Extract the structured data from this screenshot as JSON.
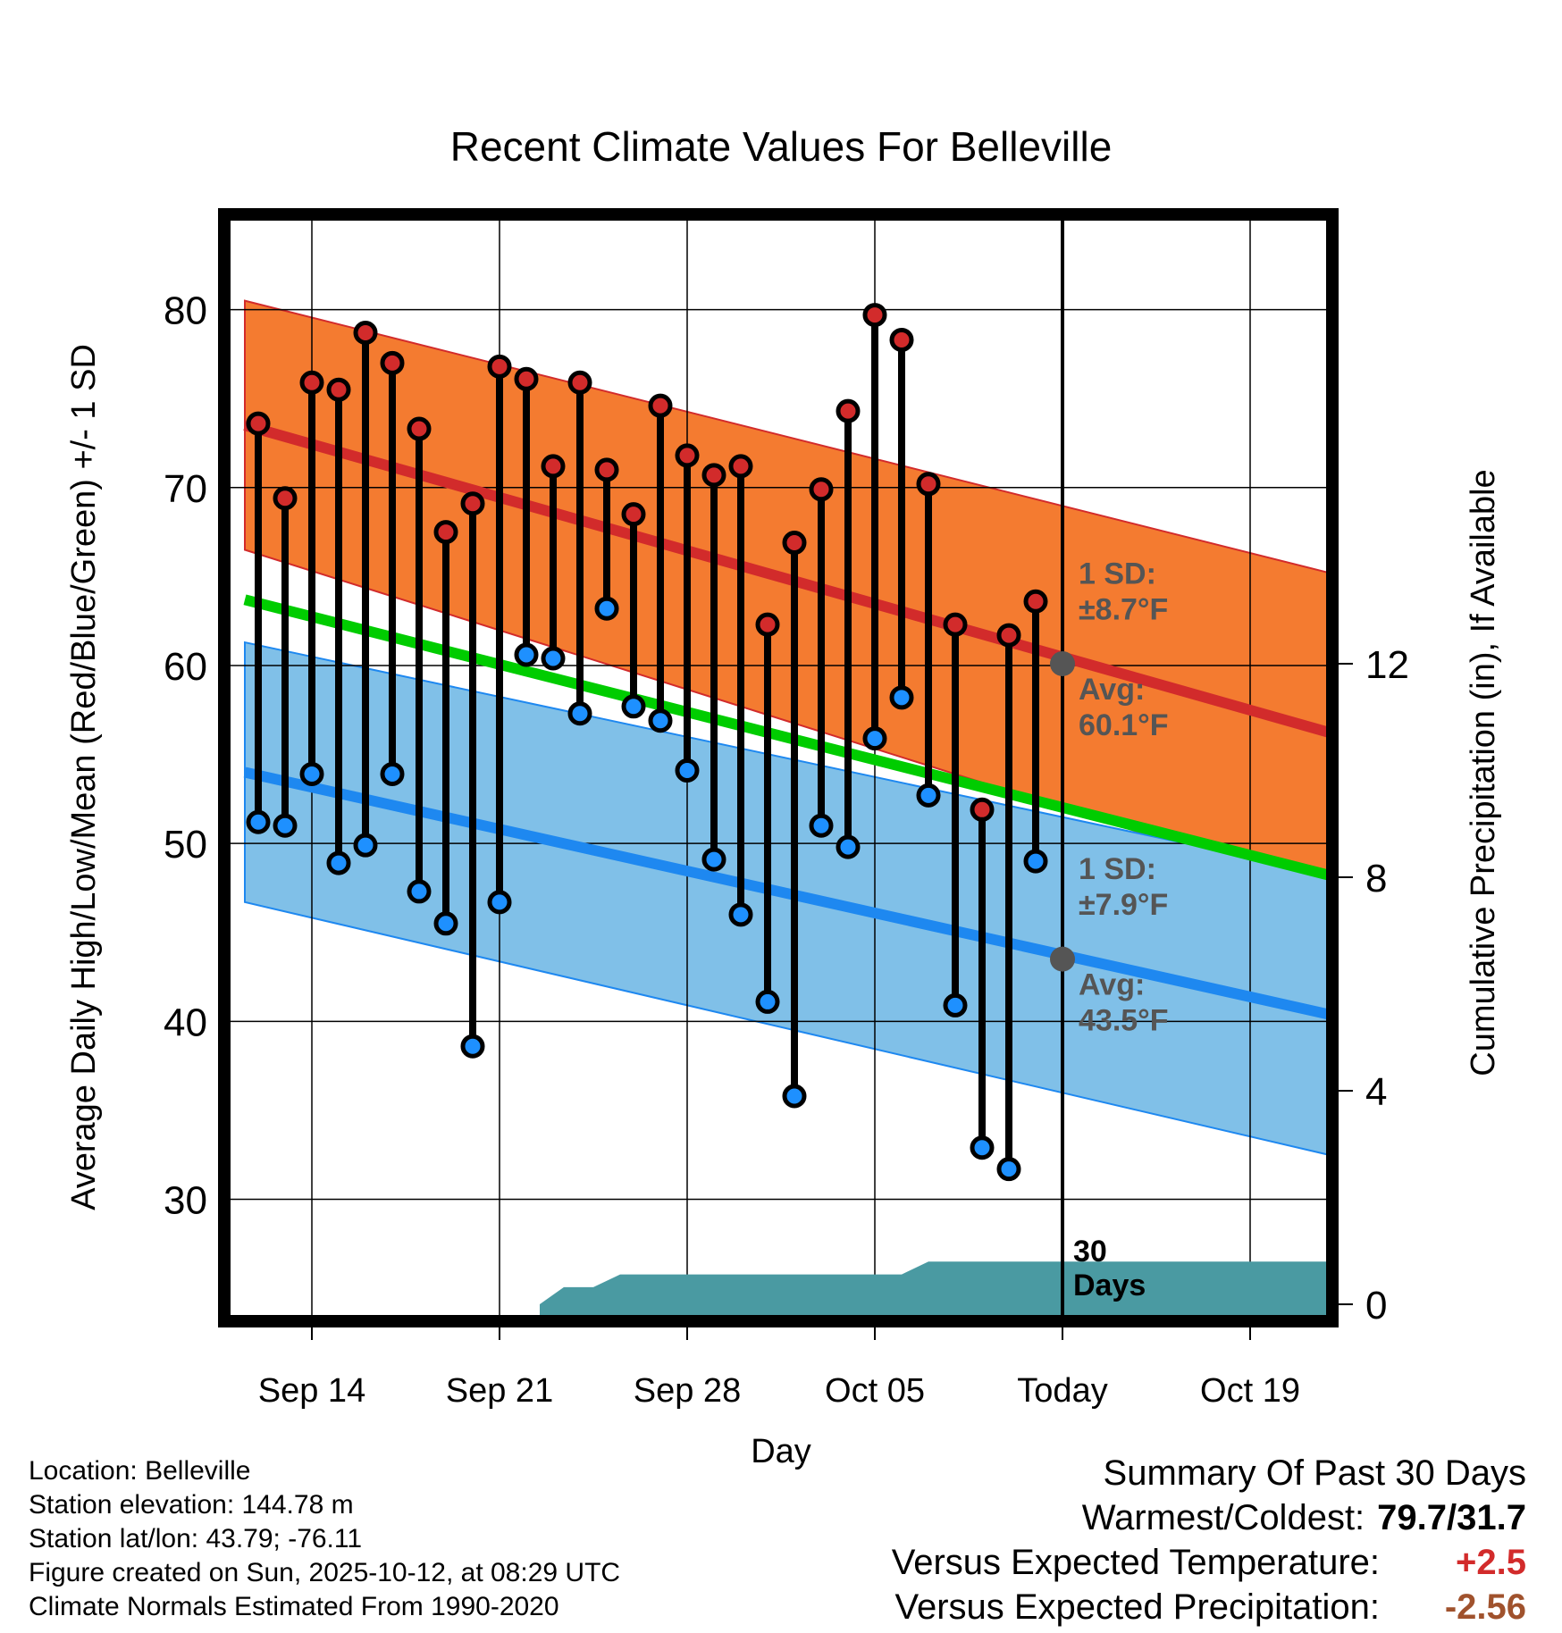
{
  "chart_data": {
    "type": "line",
    "title": "Recent Climate Values For Belleville",
    "xlabel": "Day",
    "ylabel": "Average Daily High/Low/Mean (Red/Blue/Green) +/- 1 SD",
    "y2label": "Cumulative Precipitation (in), If Available",
    "xlim": [
      -2.5,
      38.5
    ],
    "ylim": [
      23.5,
      85
    ],
    "y2lim": [
      -0.2,
      20.3
    ],
    "x_ticks": [
      {
        "x": 0,
        "label": "Sep 14"
      },
      {
        "x": 7,
        "label": "Sep 21"
      },
      {
        "x": 14,
        "label": "Sep 28"
      },
      {
        "x": 21,
        "label": "Oct 05"
      },
      {
        "x": 28,
        "label": "Today"
      },
      {
        "x": 35,
        "label": "Oct 19"
      }
    ],
    "y_ticks": [
      30,
      40,
      50,
      60,
      70,
      80
    ],
    "y2_ticks": [
      0,
      4,
      8,
      12
    ],
    "normal_high": {
      "start": 73.5,
      "end": 56.0
    },
    "normal_high_sd": {
      "start": 7.0,
      "end": 9.0
    },
    "normal_low": {
      "start": 54.0,
      "end": 40.2
    },
    "normal_low_sd": {
      "start": 7.3,
      "end": 7.9
    },
    "normal_mean": {
      "start": 63.7,
      "end": 48.0
    },
    "today_x": 28,
    "today_high_avg": 60.1,
    "today_low_avg": 43.5,
    "annotations": {
      "high_sd": [
        "1 SD:",
        "±8.7°F"
      ],
      "high_avg": [
        "Avg:",
        "60.1°F"
      ],
      "low_sd": [
        "1 SD:",
        "±7.9°F"
      ],
      "low_avg": [
        "Avg:",
        "43.5°F"
      ],
      "precip_days": [
        "30",
        "Days"
      ]
    },
    "series": [
      {
        "name": "Daily High",
        "x": [
          -2,
          -1,
          0,
          1,
          2,
          3,
          4,
          5,
          6,
          7,
          8,
          9,
          10,
          11,
          12,
          13,
          14,
          15,
          16,
          17,
          18,
          19,
          20,
          21,
          22,
          23,
          24,
          25,
          26,
          27
        ],
        "values": [
          73.6,
          69.4,
          75.9,
          75.5,
          78.7,
          77.0,
          73.3,
          67.5,
          69.1,
          76.8,
          76.1,
          71.2,
          75.9,
          71.0,
          68.5,
          74.6,
          71.8,
          70.7,
          71.2,
          62.3,
          66.9,
          69.9,
          74.3,
          79.7,
          78.3,
          70.2,
          62.3,
          51.9,
          61.7,
          63.6
        ]
      },
      {
        "name": "Daily Low",
        "x": [
          -2,
          -1,
          0,
          1,
          2,
          3,
          4,
          5,
          6,
          7,
          8,
          9,
          10,
          11,
          12,
          13,
          14,
          15,
          16,
          17,
          18,
          19,
          20,
          21,
          22,
          23,
          24,
          25,
          26,
          27
        ],
        "values": [
          51.2,
          51.0,
          53.9,
          48.9,
          49.9,
          53.9,
          47.3,
          45.5,
          38.6,
          46.7,
          60.6,
          60.4,
          57.3,
          63.2,
          57.7,
          56.9,
          54.1,
          49.1,
          46.0,
          41.1,
          35.8,
          51.0,
          49.8,
          55.9,
          58.2,
          52.7,
          40.9,
          32.9,
          31.7,
          49.0
        ]
      },
      {
        "name": "Cumulative Precipitation",
        "x": [
          8.5,
          9.4,
          10.5,
          11.5,
          12,
          20,
          21,
          22,
          23,
          24,
          38
        ],
        "values": [
          0,
          0.32,
          0.32,
          0.56,
          0.56,
          0.56,
          0.56,
          0.56,
          0.8,
          0.8,
          0.8
        ]
      }
    ]
  },
  "info": {
    "location": "Location: Belleville",
    "elevation": "Station elevation: 144.78 m",
    "latlon": "Station lat/lon: 43.79; -76.11",
    "created": "Figure created on Sun, 2025-10-12, at 08:29 UTC",
    "normals": "Climate Normals Estimated From 1990-2020"
  },
  "summary": {
    "title": "Summary Of Past 30 Days",
    "warm_label": "Warmest/Coldest:",
    "warm_value": "79.7/31.7",
    "temp_label": "Versus Expected Temperature:",
    "temp_value": "+2.5",
    "precip_label": "Versus Expected Precipitation:",
    "precip_value": "-2.56"
  },
  "colors": {
    "high_band": "#f47b30",
    "high_line": "#d22b2b",
    "low_band": "#80c0e8",
    "low_line": "#1e88f0",
    "mean_line": "#00cc00",
    "precip": "#4a9aa2",
    "annotation": "#555555",
    "high_dot": "#d22b2b",
    "low_dot": "#1e90ff",
    "temp_diff": "#d22b2b",
    "precip_diff": "#a0522d"
  }
}
